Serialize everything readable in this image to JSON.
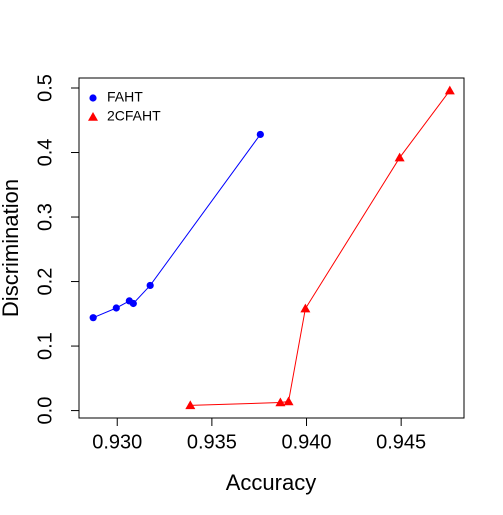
{
  "chart_data": {
    "type": "line",
    "x_label": "Accuracy",
    "y_label": "Discrimination",
    "xlim": [
      0.92798,
      0.94832
    ],
    "ylim": [
      -0.0115,
      0.5155
    ],
    "xticks": [
      {
        "value": 0.93,
        "label": "0.930"
      },
      {
        "value": 0.935,
        "label": "0.935"
      },
      {
        "value": 0.94,
        "label": "0.940"
      },
      {
        "value": 0.945,
        "label": "0.945"
      }
    ],
    "yticks": [
      {
        "value": 0,
        "label": "0.0"
      },
      0.1,
      0.2,
      0.3,
      0.4,
      0.5
    ],
    "legend": "top-left",
    "series": [
      {
        "name": "FAHT",
        "color": "#0000ff",
        "marker": "circle",
        "x": [
          0.92873,
          0.92995,
          0.93064,
          0.93085,
          0.93174,
          0.93756
        ],
        "values": [
          0.144,
          0.159,
          0.17,
          0.166,
          0.194,
          0.428
        ]
      },
      {
        "name": "2CFAHT",
        "color": "#ff0000",
        "marker": "triangle",
        "x": [
          0.93386,
          0.93862,
          0.93905,
          0.93994,
          0.94492,
          0.94757
        ],
        "values": [
          0.008,
          0.0125,
          0.014,
          0.158,
          0.392,
          0.496
        ]
      }
    ]
  }
}
